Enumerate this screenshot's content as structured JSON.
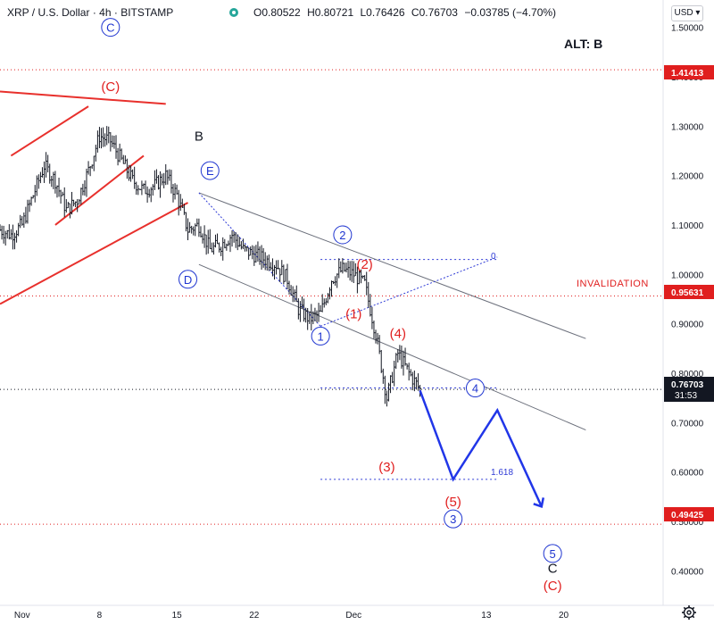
{
  "header": {
    "symbol": "XRP / U.S. Dollar",
    "interval": "4h",
    "exchange": "BITSTAMP",
    "open_label": "O",
    "open": "0.80522",
    "high_label": "H",
    "high": "0.80721",
    "low_label": "L",
    "low": "0.76426",
    "close_label": "C",
    "close": "0.76703",
    "change": "−0.03785 (−4.70%)",
    "status_color": "#26a69a"
  },
  "toolbar": {
    "currency": "USD",
    "settings_icon": "gear-icon"
  },
  "annotations": {
    "alt_text": "ALT: B",
    "invalidation": "INVALIDATION",
    "fib_zero": "0",
    "fib_ext": "1.618"
  },
  "price_labels": {
    "upper": "1.41413",
    "invalidation": "0.95631",
    "current": "0.76703",
    "countdown": "31:53",
    "lower": "0.49425"
  },
  "colors": {
    "red": "#e01e1e",
    "blue": "#1f35d0",
    "price_tag": "#131722",
    "level_tag": "#e01e1e"
  },
  "wave_labels": [
    {
      "text": "C",
      "style": "blue-circle",
      "date": "2021-11-09",
      "price": 1.5
    },
    {
      "text": "(C)",
      "style": "red",
      "date": "2021-11-09",
      "price": 1.38
    },
    {
      "text": "B",
      "style": "black",
      "date": "2021-11-17",
      "price": 1.28
    },
    {
      "text": "E",
      "style": "blue-circle",
      "date": "2021-11-18",
      "price": 1.21
    },
    {
      "text": "D",
      "style": "blue-circle",
      "date": "2021-11-16",
      "price": 0.99
    },
    {
      "text": "2",
      "style": "blue-circle",
      "date": "2021-11-30",
      "price": 1.08
    },
    {
      "text": "(2)",
      "style": "red",
      "date": "2021-12-02",
      "price": 1.02
    },
    {
      "text": "(1)",
      "style": "red",
      "date": "2021-12-01",
      "price": 0.92
    },
    {
      "text": "1",
      "style": "blue-circle",
      "date": "2021-11-28",
      "price": 0.875
    },
    {
      "text": "(4)",
      "style": "red",
      "date": "2021-12-05",
      "price": 0.88
    },
    {
      "text": "4",
      "style": "blue-circle",
      "date": "2021-12-12",
      "price": 0.77
    },
    {
      "text": "(3)",
      "style": "red",
      "date": "2021-12-04",
      "price": 0.61
    },
    {
      "text": "(5)",
      "style": "red",
      "date": "2021-12-10",
      "price": 0.54
    },
    {
      "text": "3",
      "style": "blue-circle",
      "date": "2021-12-10",
      "price": 0.505
    },
    {
      "text": "5",
      "style": "blue-circle",
      "date": "2021-12-19",
      "price": 0.435
    },
    {
      "text": "C",
      "style": "black",
      "date": "2021-12-19",
      "price": 0.405
    },
    {
      "text": "(C)",
      "style": "red",
      "date": "2021-12-19",
      "price": 0.37
    }
  ],
  "chart_data": {
    "type": "line",
    "symbol": "XRP / U.S. Dollar",
    "timeframe": "4h",
    "x_ticks": [
      "Nov",
      "8",
      "15",
      "22",
      "Dec",
      "13",
      "20"
    ],
    "y_ticks": [
      "1.50000",
      "1.40000",
      "1.30000",
      "1.20000",
      "1.10000",
      "1.00000",
      "0.90000",
      "0.80000",
      "0.70000",
      "0.60000",
      "0.50000",
      "0.40000"
    ],
    "ylim": [
      0.33,
      1.53
    ],
    "xlim": [
      "2021-10-30",
      "2021-12-29"
    ],
    "grid": false,
    "price_path": {
      "x": [
        "2021-10-30",
        "2021-10-31",
        "2021-11-01",
        "2021-11-02",
        "2021-11-03",
        "2021-11-04",
        "2021-11-05",
        "2021-11-06",
        "2021-11-07",
        "2021-11-08",
        "2021-11-09",
        "2021-11-10",
        "2021-11-11",
        "2021-11-12",
        "2021-11-13",
        "2021-11-14",
        "2021-11-15",
        "2021-11-16",
        "2021-11-17",
        "2021-11-18",
        "2021-11-19",
        "2021-11-20",
        "2021-11-21",
        "2021-11-22",
        "2021-11-23",
        "2021-11-24",
        "2021-11-25",
        "2021-11-26",
        "2021-11-27",
        "2021-11-28",
        "2021-11-29",
        "2021-11-30",
        "2021-12-01",
        "2021-12-02",
        "2021-12-03",
        "2021-12-04",
        "2021-12-05",
        "2021-12-06",
        "2021-12-07"
      ],
      "close": [
        1.09,
        1.08,
        1.1,
        1.16,
        1.22,
        1.19,
        1.13,
        1.15,
        1.21,
        1.28,
        1.27,
        1.23,
        1.19,
        1.17,
        1.18,
        1.2,
        1.16,
        1.09,
        1.1,
        1.05,
        1.06,
        1.08,
        1.05,
        1.04,
        1.03,
        1.02,
        0.99,
        0.93,
        0.91,
        0.92,
        0.99,
        1.01,
        1.0,
        0.98,
        0.88,
        0.75,
        0.84,
        0.8,
        0.767
      ]
    },
    "projection": {
      "x": [
        "2021-12-07",
        "2021-12-10",
        "2021-12-14",
        "2021-12-18"
      ],
      "y": [
        0.765,
        0.585,
        0.725,
        0.53
      ]
    },
    "triangle_lines": [
      {
        "x": [
          "2021-10-30",
          "2021-11-14"
        ],
        "y": [
          1.37,
          1.345
        ]
      },
      {
        "x": [
          "2021-10-30",
          "2021-11-16"
        ],
        "y": [
          0.94,
          1.145
        ]
      },
      {
        "x": [
          "2021-10-31",
          "2021-11-07"
        ],
        "y": [
          1.24,
          1.34
        ]
      },
      {
        "x": [
          "2021-11-04",
          "2021-11-12"
        ],
        "y": [
          1.1,
          1.24
        ]
      }
    ],
    "channel_lines": [
      {
        "x": [
          "2021-11-17",
          "2021-12-22"
        ],
        "y": [
          1.165,
          0.87
        ]
      },
      {
        "x": [
          "2021-11-17",
          "2021-12-22"
        ],
        "y": [
          1.02,
          0.685
        ]
      }
    ],
    "dotted_lines": [
      {
        "x": [
          "2021-11-17",
          "2021-11-28"
        ],
        "y": [
          1.165,
          0.895
        ]
      },
      {
        "x": [
          "2021-11-28",
          "2021-12-14"
        ],
        "y": [
          0.895,
          1.035
        ]
      }
    ],
    "levels": [
      {
        "y": 1.41413,
        "color": "#e01e1e",
        "style": "dotted"
      },
      {
        "y": 0.95631,
        "color": "#e01e1e",
        "style": "dotted"
      },
      {
        "y": 0.76703,
        "color": "#131722",
        "style": "dotted"
      },
      {
        "y": 0.49425,
        "color": "#e01e1e",
        "style": "dotted"
      }
    ],
    "fib_levels": [
      {
        "label": "0",
        "y": 1.03,
        "x": [
          "2021-11-28",
          "2021-12-14"
        ]
      },
      {
        "label": "1.618",
        "y": 0.585,
        "x": [
          "2021-11-28",
          "2021-12-14"
        ]
      },
      {
        "label": "",
        "y": 0.77,
        "x": [
          "2021-11-28",
          "2021-12-14"
        ]
      }
    ]
  }
}
